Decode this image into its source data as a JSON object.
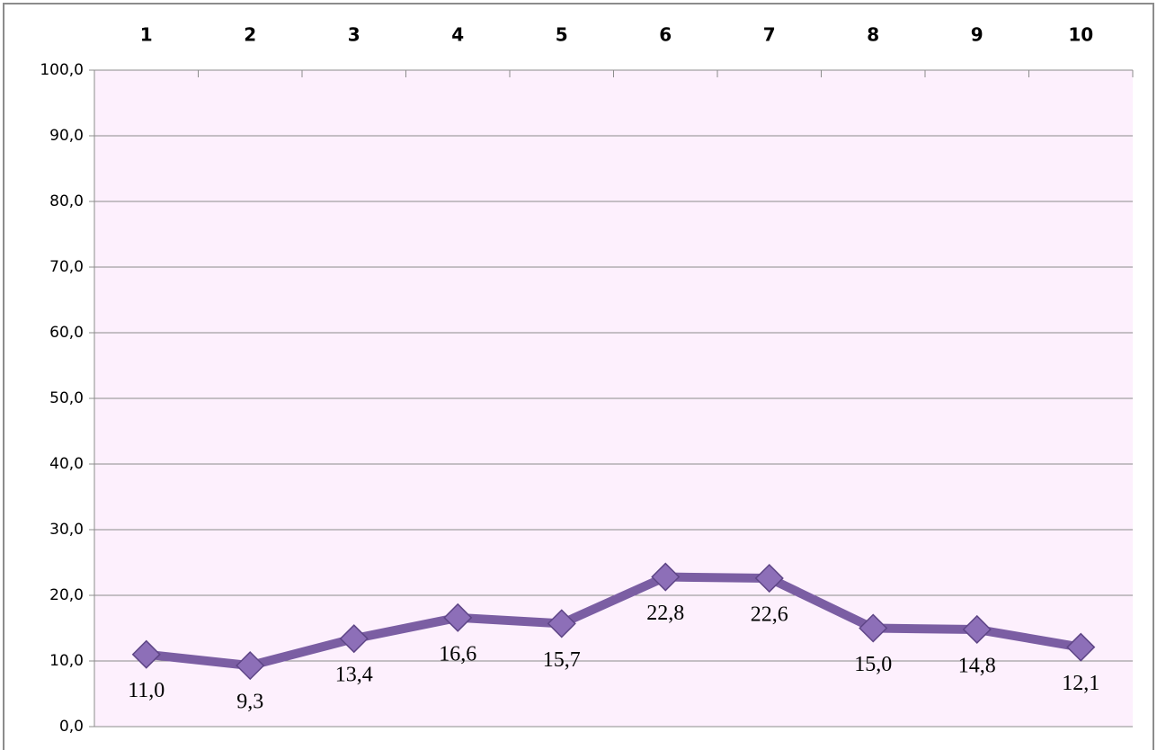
{
  "chart_data": {
    "type": "line",
    "categories": [
      "1",
      "2",
      "3",
      "4",
      "5",
      "6",
      "7",
      "8",
      "9",
      "10"
    ],
    "series": [
      {
        "color": "#7b5ea3",
        "values": [
          11.0,
          9.3,
          13.4,
          16.6,
          15.7,
          22.8,
          22.6,
          15.0,
          14.8,
          12.1
        ],
        "value_labels": [
          "11,0",
          "9,3",
          "13,4",
          "16,6",
          "15,7",
          "22,8",
          "22,6",
          "15,0",
          "14,8",
          "12,1"
        ]
      }
    ],
    "ylim": [
      0,
      100
    ],
    "yticks": [
      {
        "value": 0,
        "label": "0,0"
      },
      {
        "value": 10,
        "label": "10,0"
      },
      {
        "value": 20,
        "label": "20,0"
      },
      {
        "value": 30,
        "label": "30,0"
      },
      {
        "value": 40,
        "label": "40,0"
      },
      {
        "value": 50,
        "label": "50,0"
      },
      {
        "value": 60,
        "label": "60,0"
      },
      {
        "value": 70,
        "label": "70,0"
      },
      {
        "value": 80,
        "label": "80,0"
      },
      {
        "value": 90,
        "label": "90,0"
      },
      {
        "value": 100,
        "label": "100,0"
      }
    ],
    "grid": true,
    "background": "#fdf0fd"
  }
}
